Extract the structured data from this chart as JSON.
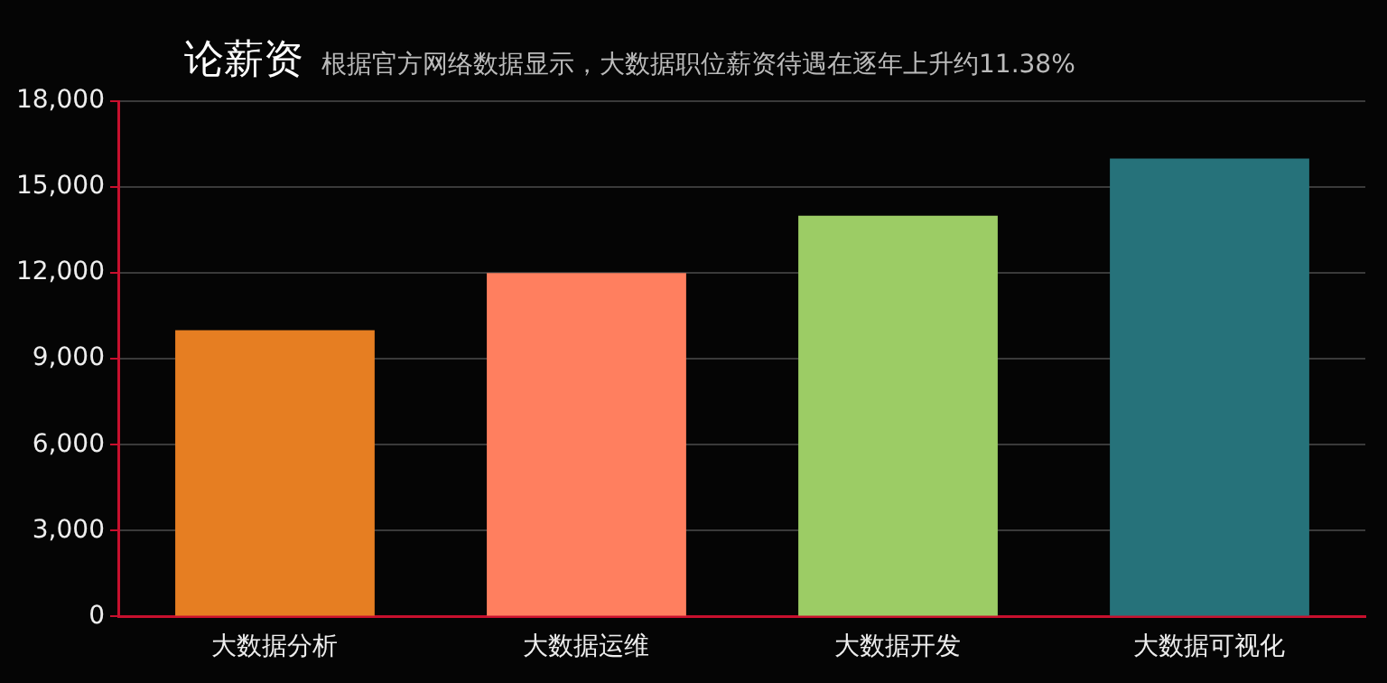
{
  "chart_data": {
    "type": "bar",
    "title": "论薪资",
    "subtitle": "根据官方网络数据显示，大数据职位薪资待遇在逐年上升约11.38%",
    "categories": [
      "大数据分析",
      "大数据运维",
      "大数据开发",
      "大数据可视化"
    ],
    "values": [
      10000,
      12000,
      14000,
      16000
    ],
    "colors": [
      "#e67e22",
      "#ff7f5f",
      "#9ccc65",
      "#26727a"
    ],
    "ylim": [
      0,
      18000
    ],
    "yticks": [
      {
        "value": 0,
        "label": "0"
      },
      {
        "value": 3000,
        "label": "3,000"
      },
      {
        "value": 6000,
        "label": "6,000"
      },
      {
        "value": 9000,
        "label": "9,000"
      },
      {
        "value": 12000,
        "label": "12,000"
      },
      {
        "value": 15000,
        "label": "15,000"
      },
      {
        "value": 18000,
        "label": "18,000"
      }
    ],
    "grid": "y",
    "legend": false
  }
}
